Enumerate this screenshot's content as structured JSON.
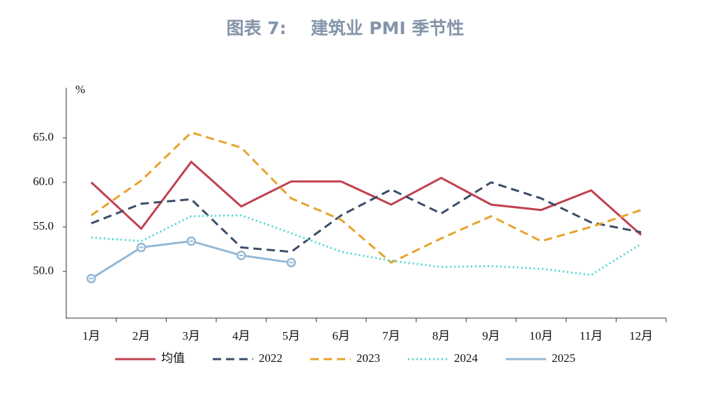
{
  "chart_data": {
    "type": "line",
    "title": "图表 7:    建筑业 PMI 季节性",
    "y_unit": "%",
    "categories": [
      "1月",
      "2月",
      "3月",
      "4月",
      "5月",
      "6月",
      "7月",
      "8月",
      "9月",
      "10月",
      "11月",
      "12月"
    ],
    "series": [
      {
        "name": "均值",
        "color": "#c0404f",
        "dash": "solid",
        "values": [
          60.0,
          54.8,
          62.3,
          57.3,
          60.1,
          60.1,
          57.5,
          60.5,
          57.5,
          56.9,
          59.1,
          54.1
        ]
      },
      {
        "name": "2022",
        "color": "#3a4d68",
        "dash": "dashed",
        "values": [
          55.4,
          57.6,
          58.1,
          52.7,
          52.2,
          56.3,
          59.2,
          56.5,
          60.0,
          58.2,
          55.5,
          54.4
        ]
      },
      {
        "name": "2023",
        "color": "#e8a22e",
        "dash": "dashed",
        "values": [
          56.3,
          60.2,
          65.6,
          63.9,
          58.2,
          55.8,
          51.0,
          53.7,
          56.2,
          53.4,
          55.0,
          56.9
        ]
      },
      {
        "name": "2024",
        "color": "#4fd6d0",
        "dash": "dotted",
        "values": [
          53.8,
          53.4,
          56.2,
          56.3,
          54.3,
          52.2,
          51.2,
          50.5,
          50.6,
          50.3,
          49.6,
          53.1
        ]
      },
      {
        "name": "2025",
        "color": "#94b8d6",
        "dash": "solid",
        "marker": "circle",
        "values": [
          49.2,
          52.7,
          53.4,
          51.8,
          51.0,
          null,
          null,
          null,
          null,
          null,
          null,
          null
        ]
      }
    ],
    "ylim": [
      45,
      70
    ],
    "yticks": [
      {
        "value": 50,
        "label": "50.0"
      },
      {
        "value": 55,
        "label": "55.0"
      },
      {
        "value": 60,
        "label": "60.0"
      },
      {
        "value": 65,
        "label": "65.0"
      }
    ],
    "grid": false,
    "legend": "bottom"
  }
}
